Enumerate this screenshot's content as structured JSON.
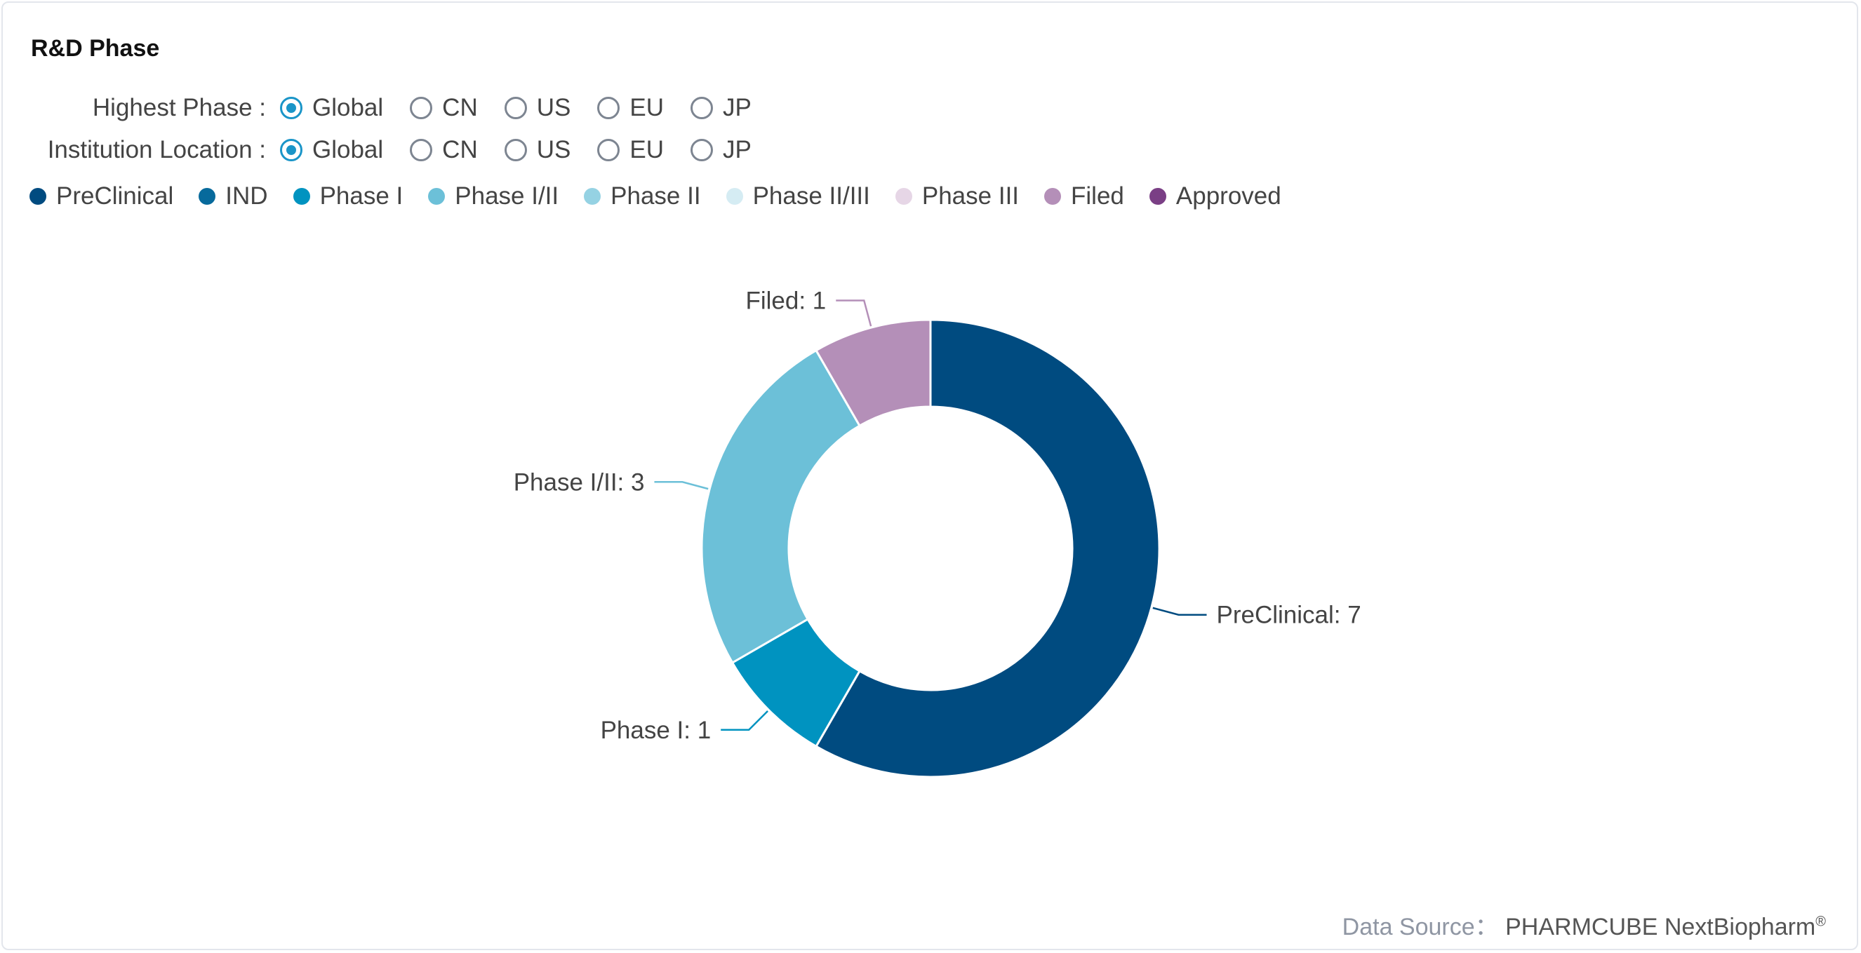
{
  "card": {
    "title": "R&D Phase"
  },
  "filters": [
    {
      "label": "Highest Phase :",
      "options": [
        "Global",
        "CN",
        "US",
        "EU",
        "JP"
      ],
      "selected": "Global"
    },
    {
      "label": "Institution Location :",
      "options": [
        "Global",
        "CN",
        "US",
        "EU",
        "JP"
      ],
      "selected": "Global"
    }
  ],
  "legend": [
    {
      "label": "PreClinical",
      "color": "#004b80"
    },
    {
      "label": "IND",
      "color": "#076a9c"
    },
    {
      "label": "Phase I",
      "color": "#0093c0"
    },
    {
      "label": "Phase I/II",
      "color": "#6cc0d8"
    },
    {
      "label": "Phase II",
      "color": "#95d2e3"
    },
    {
      "label": "Phase II/III",
      "color": "#d5ecf3"
    },
    {
      "label": "Phase III",
      "color": "#e6d6e6"
    },
    {
      "label": "Filed",
      "color": "#b48fb8"
    },
    {
      "label": "Approved",
      "color": "#7a3f85"
    }
  ],
  "chart_data": {
    "type": "pie",
    "donut": true,
    "slices": [
      {
        "label": "PreClinical",
        "value": 7,
        "color": "#004b80"
      },
      {
        "label": "Phase I",
        "value": 1,
        "color": "#0093c0"
      },
      {
        "label": "Phase I/II",
        "value": 3,
        "color": "#6cc0d8"
      },
      {
        "label": "Filed",
        "value": 1,
        "color": "#b48fb8"
      }
    ],
    "data_labels": [
      "PreClinical: 7",
      "Phase I: 1",
      "Phase I/II: 3",
      "Filed: 1"
    ],
    "legend_position": "top-left"
  },
  "footer": {
    "source_label": "Data Source：",
    "source_name": "PHARMCUBE NextBiopharm",
    "source_mark": "®"
  }
}
